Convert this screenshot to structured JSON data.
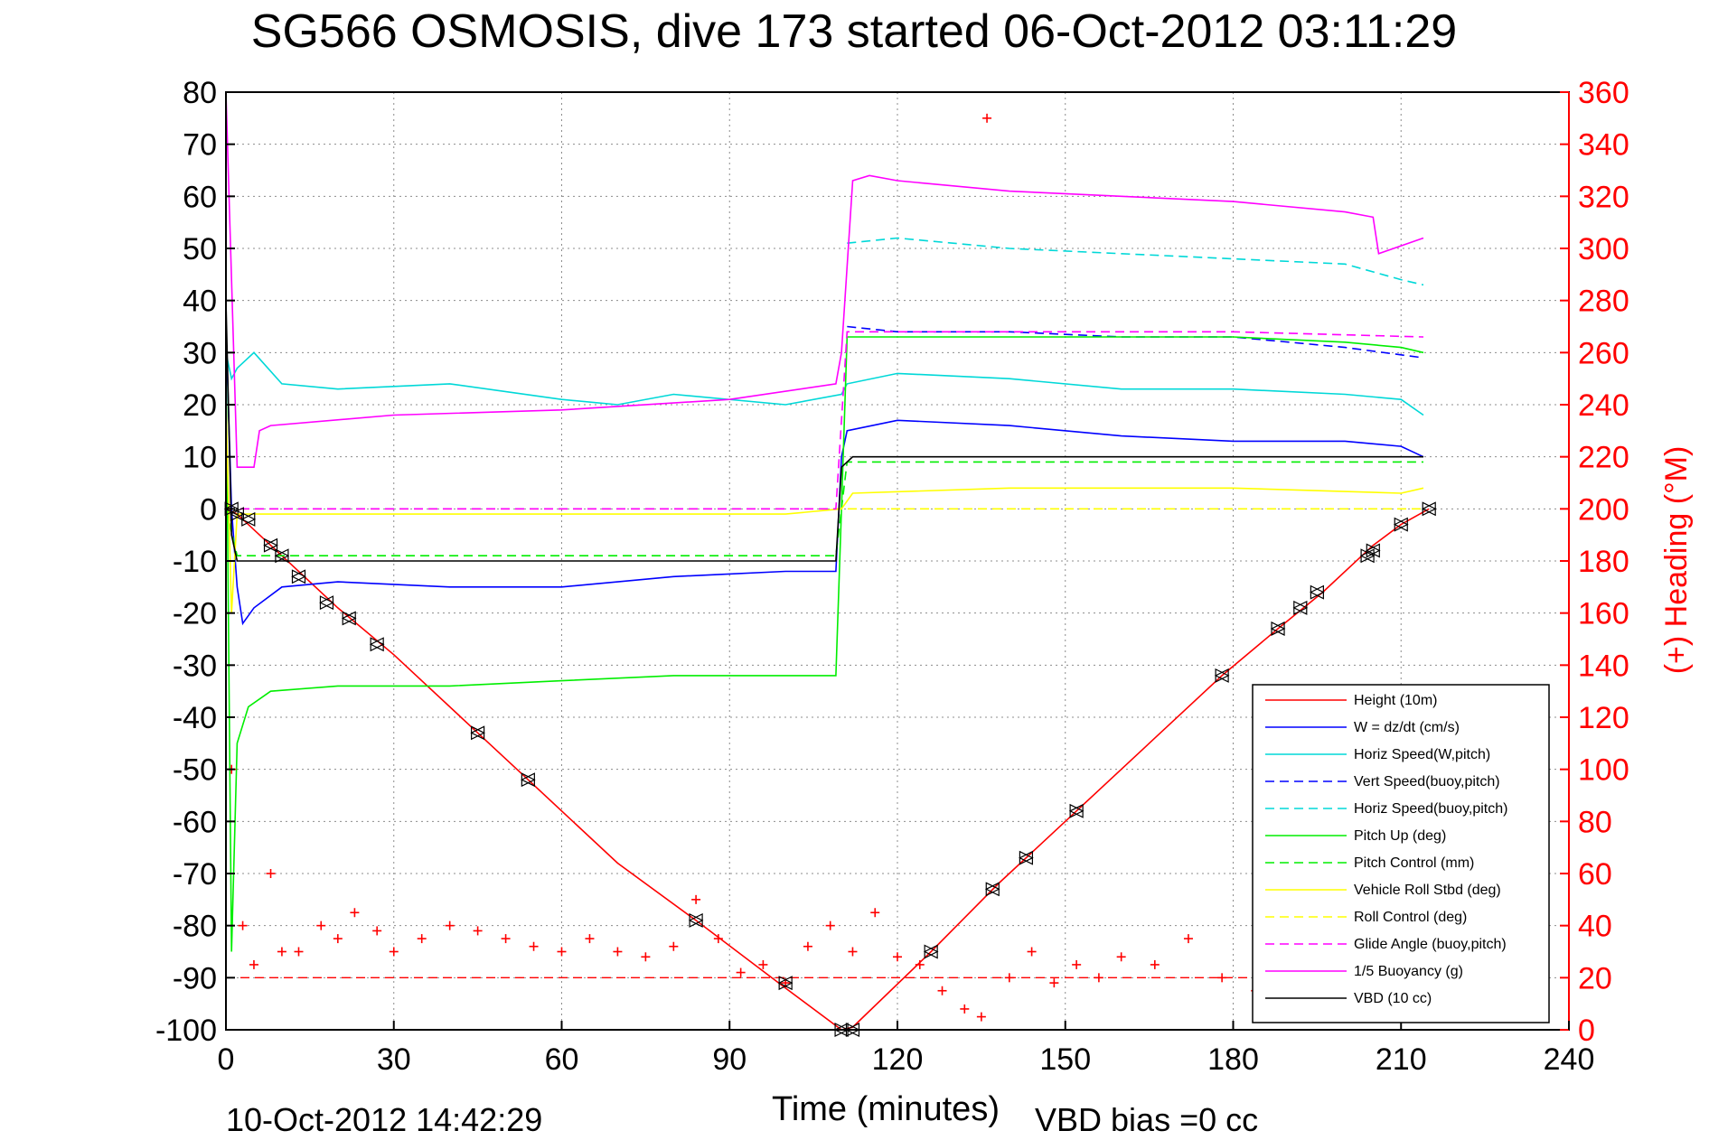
{
  "chart_data": {
    "type": "line",
    "title": "SG566 OSMOSIS, dive 173 started 06-Oct-2012 03:11:29",
    "xlabel": "Time (minutes)",
    "ylabel": "",
    "y2label": "(+) Heading (°M)",
    "footer_left": "10-Oct-2012 14:42:29",
    "footer_right": "VBD bias =0 cc",
    "xlim": [
      0,
      240
    ],
    "ylim": [
      -100,
      80
    ],
    "y2lim": [
      0,
      360
    ],
    "xticks": [
      0,
      30,
      60,
      90,
      120,
      150,
      180,
      210,
      240
    ],
    "yticks": [
      80,
      70,
      60,
      50,
      40,
      30,
      20,
      10,
      0,
      -10,
      -20,
      -30,
      -40,
      -50,
      -60,
      -70,
      -80,
      -90,
      -100
    ],
    "y2ticks": [
      360,
      340,
      320,
      300,
      280,
      260,
      240,
      220,
      200,
      180,
      160,
      140,
      120,
      100,
      80,
      60,
      40,
      20,
      0
    ],
    "grid": true,
    "legend_position": "bottom-right",
    "colors": {
      "axis": "#000000",
      "right_axis": "#ff0000",
      "grid": "#8c8c8c"
    },
    "series": [
      {
        "name": "Height (10m)",
        "color": "#ff0000",
        "style": "solid",
        "x": [
          0,
          2,
          5,
          10,
          20,
          30,
          45,
          54,
          70,
          84,
          100,
          110,
          112,
          126,
          138,
          152,
          178,
          188,
          196,
          205,
          210,
          215
        ],
        "y": [
          0,
          -1,
          -4,
          -9,
          -19,
          -28,
          -43,
          -52,
          -68,
          -79,
          -92,
          -100,
          -99.5,
          -85,
          -72,
          -58,
          -32,
          -23,
          -16,
          -7,
          -3,
          0
        ]
      },
      {
        "name": "W = dz/dt (cm/s)",
        "color": "#0000ff",
        "style": "solid",
        "x": [
          0,
          1,
          2,
          3,
          5,
          10,
          20,
          40,
          60,
          80,
          100,
          109,
          110,
          111,
          120,
          140,
          160,
          180,
          200,
          210,
          214
        ],
        "y": [
          35,
          0,
          -15,
          -22,
          -19,
          -15,
          -14,
          -15,
          -15,
          -13,
          -12,
          -12,
          10,
          15,
          17,
          16,
          14,
          13,
          13,
          12,
          10
        ]
      },
      {
        "name": "Horiz Speed(W,pitch)",
        "color": "#00d8d8",
        "style": "solid",
        "x": [
          0,
          1,
          2,
          5,
          10,
          20,
          40,
          60,
          70,
          80,
          100,
          110,
          111,
          120,
          140,
          160,
          180,
          200,
          210,
          214
        ],
        "y": [
          30,
          25,
          27,
          30,
          24,
          23,
          24,
          21,
          20,
          22,
          20,
          22,
          24,
          26,
          25,
          23,
          23,
          22,
          21,
          18
        ]
      },
      {
        "name": "Vert Speed(buoy,pitch)",
        "color": "#0000ff",
        "style": "dashed",
        "x": [
          111,
          120,
          140,
          160,
          180,
          200,
          214
        ],
        "y": [
          35,
          34,
          34,
          33,
          33,
          31,
          29
        ]
      },
      {
        "name": "Horiz Speed(buoy,pitch)",
        "color": "#00d8d8",
        "style": "dashed",
        "x": [
          111,
          120,
          140,
          160,
          180,
          200,
          210,
          214
        ],
        "y": [
          51,
          52,
          50,
          49,
          48,
          47,
          44,
          43
        ]
      },
      {
        "name": "Pitch Up (deg)",
        "color": "#00ee00",
        "style": "solid",
        "x": [
          0,
          1,
          2,
          4,
          8,
          20,
          40,
          60,
          80,
          100,
          109,
          110,
          111,
          120,
          140,
          160,
          180,
          200,
          210,
          214
        ],
        "y": [
          30,
          -85,
          -45,
          -38,
          -35,
          -34,
          -34,
          -33,
          -32,
          -32,
          -32,
          0,
          33,
          33,
          33,
          33,
          33,
          32,
          31,
          30
        ]
      },
      {
        "name": "Pitch Control (mm)",
        "color": "#00ee00",
        "style": "dashed",
        "x": [
          0,
          2,
          4,
          109,
          111,
          214
        ],
        "y": [
          0,
          -9,
          -9,
          -9,
          9,
          9
        ]
      },
      {
        "name": "Vehicle Roll Stbd (deg)",
        "color": "#ffff00",
        "style": "solid",
        "x": [
          0,
          1,
          2,
          4,
          20,
          60,
          100,
          110,
          112,
          140,
          180,
          210,
          214
        ],
        "y": [
          20,
          -20,
          -1,
          -1,
          -1,
          -1,
          -1,
          0,
          3,
          4,
          4,
          3,
          4
        ]
      },
      {
        "name": "Roll Control (deg)",
        "color": "#ffff00",
        "style": "dashed",
        "x": [
          0,
          4,
          109,
          112,
          214
        ],
        "y": [
          0,
          0,
          0,
          0,
          0
        ]
      },
      {
        "name": "Glide Angle (buoy,pitch)",
        "color": "#ff00ff",
        "style": "dashed",
        "x": [
          0,
          4,
          109,
          111,
          140,
          180,
          214
        ],
        "y": [
          0,
          0,
          0,
          34,
          34,
          34,
          33
        ]
      },
      {
        "name": "1/5 Buoyancy (g)",
        "color": "#ff00ff",
        "style": "solid",
        "x": [
          0,
          2,
          5,
          6,
          8,
          30,
          60,
          90,
          109,
          110,
          112,
          115,
          120,
          140,
          160,
          180,
          200,
          205,
          206,
          214
        ],
        "y": [
          80,
          8,
          8,
          15,
          16,
          18,
          19,
          21,
          24,
          30,
          63,
          64,
          63,
          61,
          60,
          59,
          57,
          56,
          49,
          52
        ]
      },
      {
        "name": "VBD (10 cc)",
        "color": "#000000",
        "style": "solid",
        "x": [
          0,
          1,
          2,
          4,
          109,
          110,
          112,
          214
        ],
        "y": [
          40,
          -5,
          -10,
          -10,
          -10,
          8,
          10,
          10
        ]
      }
    ],
    "heading": {
      "axis": "y2",
      "color": "#ff0000",
      "marker": "+",
      "reference": 20,
      "x": [
        1,
        3,
        5,
        8,
        10,
        13,
        17,
        20,
        23,
        27,
        30,
        35,
        40,
        45,
        50,
        55,
        60,
        65,
        70,
        75,
        80,
        84,
        88,
        92,
        96,
        100,
        104,
        108,
        112,
        116,
        120,
        124,
        128,
        132,
        135,
        136,
        140,
        144,
        148,
        152,
        156,
        160,
        166,
        172,
        178,
        184
      ],
      "y": [
        100,
        40,
        25,
        60,
        30,
        30,
        40,
        35,
        45,
        38,
        30,
        35,
        40,
        38,
        35,
        32,
        30,
        35,
        30,
        28,
        32,
        50,
        35,
        22,
        25,
        18,
        32,
        40,
        30,
        45,
        28,
        25,
        15,
        8,
        5,
        350,
        20,
        30,
        18,
        25,
        20,
        28,
        25,
        35,
        20,
        15
      ]
    },
    "markers": {
      "symbol": "triangle",
      "x": [
        1,
        2,
        4,
        8,
        10,
        13,
        18,
        22,
        27,
        45,
        54,
        84,
        100,
        110,
        112,
        126,
        137,
        143,
        152,
        178,
        188,
        192,
        195,
        204,
        205,
        210,
        215
      ],
      "y": [
        0,
        -1,
        -2,
        -7,
        -9,
        -13,
        -18,
        -21,
        -26,
        -43,
        -52,
        -79,
        -91,
        -100,
        -100,
        -85,
        -73,
        -67,
        -58,
        -32,
        -23,
        -19,
        -16,
        -9,
        -8,
        -3,
        0
      ]
    }
  }
}
